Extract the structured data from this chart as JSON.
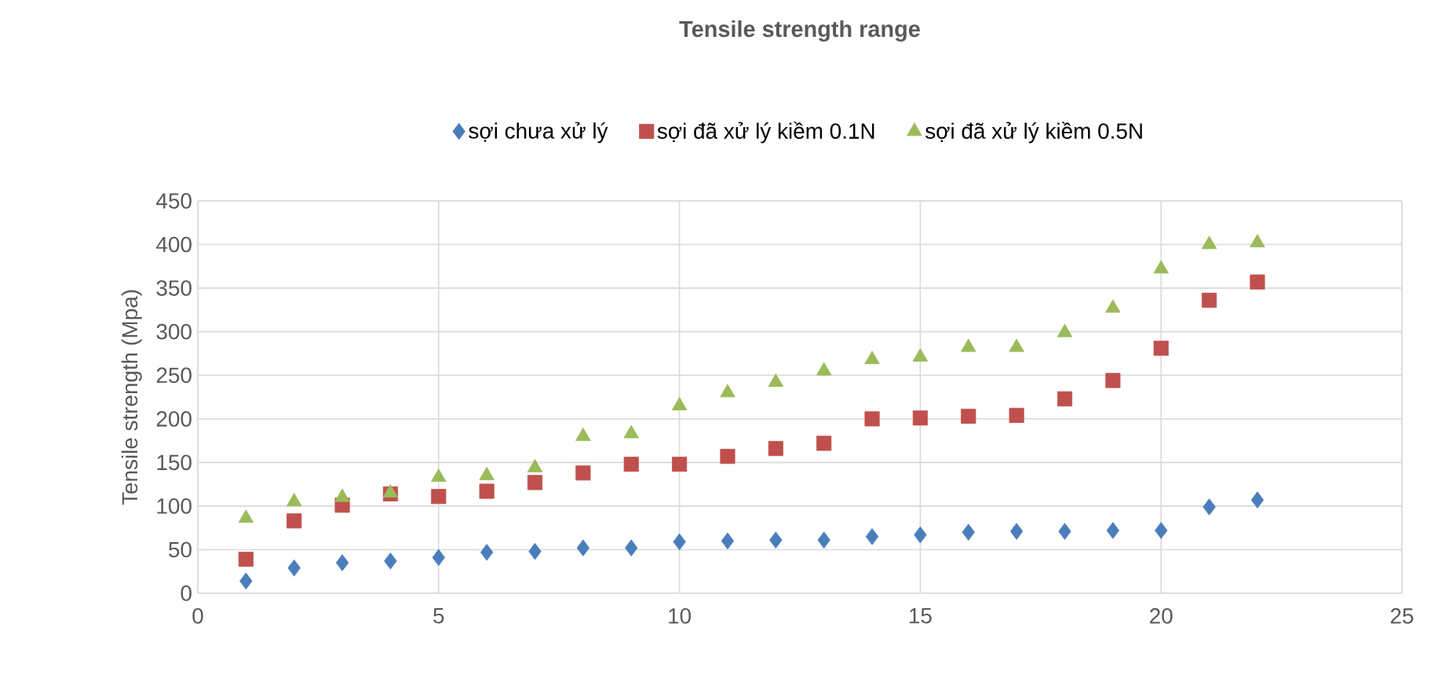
{
  "chart_data": {
    "type": "scatter",
    "title": "Tensile strength range",
    "ylabel": "Tensile strength (Mpa)",
    "x": [
      1,
      2,
      3,
      4,
      5,
      6,
      7,
      8,
      9,
      10,
      11,
      12,
      13,
      14,
      15,
      16,
      17,
      18,
      19,
      20,
      21,
      22
    ],
    "series": [
      {
        "name": "sợi chưa xử lý",
        "color": "#4a7ebb",
        "marker": "diamond",
        "values": [
          14,
          29,
          35,
          37,
          41,
          47,
          48,
          52,
          52,
          59,
          60,
          61,
          61,
          65,
          67,
          70,
          71,
          71,
          72,
          72,
          99,
          107
        ]
      },
      {
        "name": "sợi đã xử lý kiềm 0.1N",
        "color": "#c0504d",
        "marker": "square",
        "values": [
          39,
          83,
          101,
          114,
          111,
          117,
          127,
          138,
          148,
          148,
          157,
          166,
          172,
          200,
          201,
          203,
          204,
          223,
          244,
          281,
          336,
          357
        ]
      },
      {
        "name": "sợi đã xử lý kiềm 0.5N",
        "color": "#9bbb59",
        "marker": "triangle",
        "values": [
          86,
          105,
          110,
          115,
          133,
          135,
          144,
          180,
          183,
          215,
          230,
          242,
          255,
          268,
          271,
          282,
          282,
          299,
          327,
          372,
          400,
          402
        ]
      }
    ],
    "xlim": [
      0,
      25
    ],
    "xticks": [
      0,
      5,
      10,
      15,
      20,
      25
    ],
    "ylim": [
      0,
      450
    ],
    "yticks": [
      0,
      50,
      100,
      150,
      200,
      250,
      300,
      350,
      400,
      450
    ],
    "grid": true,
    "legend": "top"
  }
}
